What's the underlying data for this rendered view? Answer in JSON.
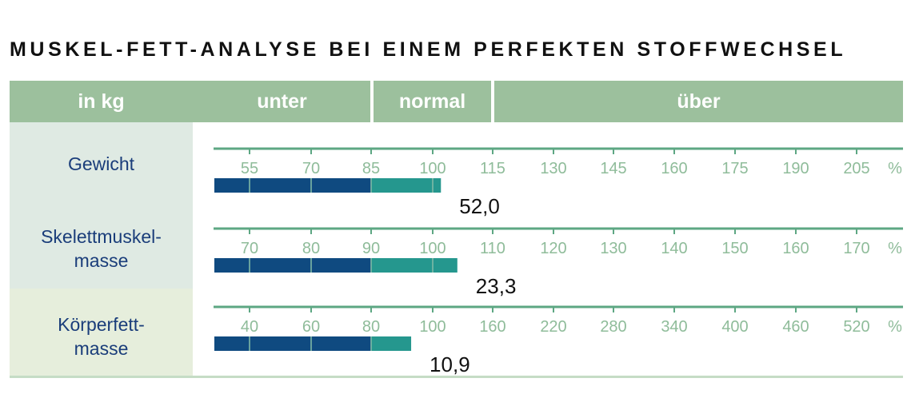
{
  "title": "MUSKEL-FETT-ANALYSE BEI EINEM PERFEKTEN STOFFWECHSEL",
  "header": {
    "unit": "in kg",
    "under": "unter",
    "normal": "normal",
    "over": "über"
  },
  "colors": {
    "header_green": "#9cc09d",
    "axis_green": "#5da783",
    "tick_text": "#8fbc9a",
    "bar_under": "#0f4a80",
    "bar_normal": "#25978e",
    "row1_bg": "#dfeae3",
    "row3_bg": "#e6eedc",
    "label_blue": "#1a3d7a"
  },
  "rows": [
    {
      "label_line1": "Gewicht",
      "label_line2": "",
      "ticks": [
        "55",
        "70",
        "85",
        "100",
        "115",
        "130",
        "145",
        "160",
        "175",
        "190",
        "205",
        "%"
      ],
      "value": "52,0",
      "bar_percent": 102
    },
    {
      "label_line1": "Skelettmuskel-",
      "label_line2": "masse",
      "ticks": [
        "70",
        "80",
        "90",
        "100",
        "110",
        "120",
        "130",
        "140",
        "150",
        "160",
        "170",
        "%"
      ],
      "value": "23,3",
      "bar_percent": 104
    },
    {
      "label_line1": "Körperfett-",
      "label_line2": "masse",
      "ticks": [
        "40",
        "60",
        "80",
        "100",
        "160",
        "220",
        "280",
        "340",
        "400",
        "460",
        "520",
        "%"
      ],
      "value": "10,9",
      "bar_percent": 93
    }
  ],
  "chart_data": {
    "type": "bar",
    "title": "MUSKEL-FETT-ANALYSE BEI EINEM PERFEKTEN STOFFWECHSEL",
    "categories": [
      "Gewicht",
      "Skelettmuskelmasse",
      "Körperfettmasse"
    ],
    "series": [
      {
        "name": "in kg",
        "values": [
          52.0,
          23.3,
          10.9
        ]
      }
    ],
    "percent_of_normal": [
      102,
      104,
      93
    ],
    "zones": [
      "unter",
      "normal",
      "über"
    ],
    "axes": [
      {
        "category": "Gewicht",
        "ticks": [
          55,
          70,
          85,
          100,
          115,
          130,
          145,
          160,
          175,
          190,
          205
        ],
        "unit": "%"
      },
      {
        "category": "Skelettmuskelmasse",
        "ticks": [
          70,
          80,
          90,
          100,
          110,
          120,
          130,
          140,
          150,
          160,
          170
        ],
        "unit": "%"
      },
      {
        "category": "Körperfettmasse",
        "ticks": [
          40,
          60,
          80,
          100,
          160,
          220,
          280,
          340,
          400,
          460,
          520
        ],
        "unit": "%"
      }
    ],
    "orientation": "horizontal",
    "grid": false
  }
}
